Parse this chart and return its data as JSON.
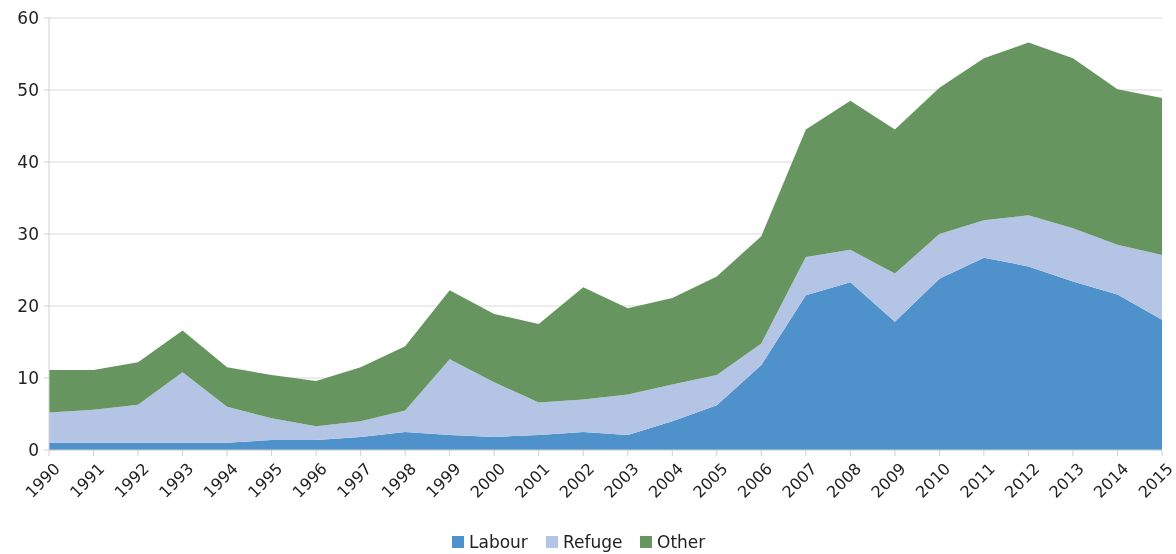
{
  "chart_data": {
    "type": "area",
    "stacked": true,
    "categories": [
      "1990",
      "1991",
      "1992",
      "1993",
      "1994",
      "1995",
      "1996",
      "1997",
      "1998",
      "1999",
      "2000",
      "2001",
      "2002",
      "2003",
      "2004",
      "2005",
      "2006",
      "2007",
      "2008",
      "2009",
      "2010",
      "2011",
      "2012",
      "2013",
      "2014",
      "2015"
    ],
    "series": [
      {
        "name": "Labour",
        "color": "#4f91cb",
        "values": [
          1.0,
          1.0,
          1.0,
          1.0,
          1.0,
          1.4,
          1.4,
          1.8,
          2.5,
          2.1,
          1.8,
          2.1,
          2.5,
          2.1,
          4.0,
          6.2,
          11.8,
          21.5,
          23.3,
          17.8,
          23.8,
          26.7,
          25.5,
          23.4,
          21.6,
          18.1
        ]
      },
      {
        "name": "Refuge",
        "color": "#b4c4e4",
        "values": [
          4.2,
          4.6,
          5.3,
          9.8,
          5.0,
          3.0,
          1.9,
          2.2,
          3.0,
          10.5,
          7.6,
          4.5,
          4.5,
          5.6,
          5.1,
          4.2,
          3.0,
          5.3,
          4.5,
          6.7,
          6.2,
          5.2,
          7.1,
          7.4,
          6.9,
          9.0
        ]
      },
      {
        "name": "Other",
        "color": "#66955f",
        "values": [
          5.9,
          5.5,
          5.9,
          5.8,
          5.5,
          6.0,
          6.3,
          7.5,
          8.9,
          9.6,
          9.5,
          10.9,
          15.6,
          12.0,
          12.0,
          13.7,
          14.9,
          17.7,
          20.7,
          20.0,
          20.3,
          22.5,
          24.0,
          23.6,
          21.6,
          21.8
        ]
      }
    ],
    "ylim": [
      0,
      60
    ],
    "yticks": [
      0,
      10,
      20,
      30,
      40,
      50,
      60
    ],
    "grid": "y",
    "legend": "bottom"
  }
}
